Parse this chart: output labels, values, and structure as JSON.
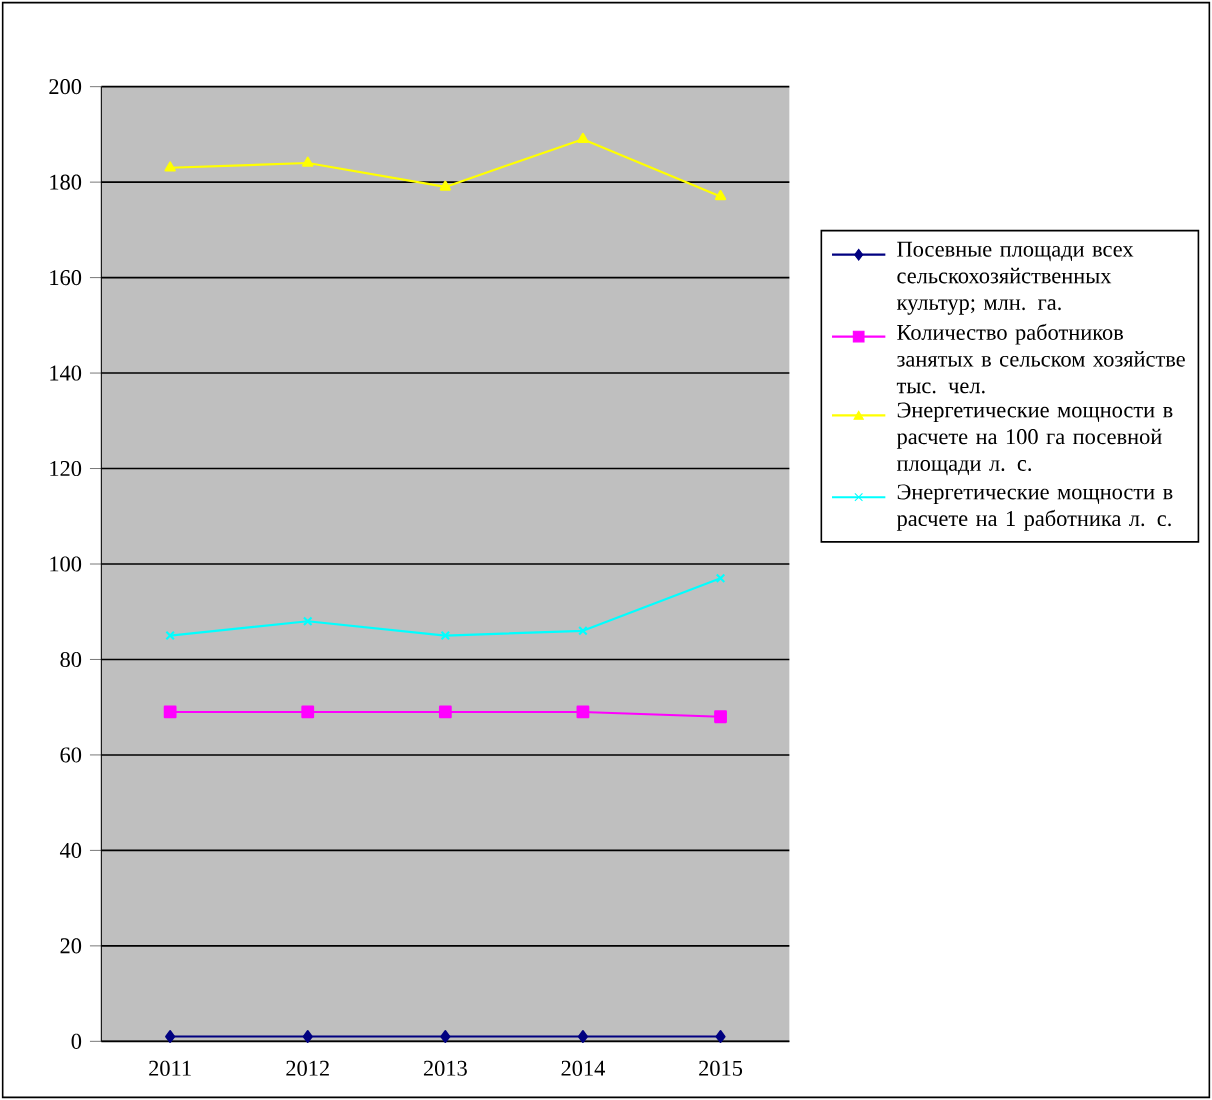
{
  "chart_data": {
    "type": "line",
    "categories": [
      "2011",
      "2012",
      "2013",
      "2014",
      "2015"
    ],
    "series": [
      {
        "name": "Посевные площади всех сельскохозяйственных культур; млн. га.",
        "color": "#000080",
        "marker": "diamond",
        "values": [
          1,
          1,
          1,
          1,
          1
        ]
      },
      {
        "name": "Количество работников занятых в сельском хозяйстве тыс. чел.",
        "color": "#ff00ff",
        "marker": "square",
        "values": [
          69,
          69,
          69,
          69,
          68
        ]
      },
      {
        "name": "Энергетические мощности в расчете на 100 га посевной площади л. с.",
        "color": "#ffff00",
        "marker": "triangle",
        "values": [
          183,
          184,
          179,
          189,
          177
        ]
      },
      {
        "name": "Энергетические мощности в расчете на 1 работника л. с.",
        "color": "#00ffff",
        "marker": "cross",
        "values": [
          85,
          88,
          85,
          86,
          97
        ]
      }
    ],
    "ylim": [
      0,
      200
    ],
    "yticks": [
      0,
      20,
      40,
      60,
      80,
      100,
      120,
      140,
      160,
      180,
      200
    ],
    "grid": "y",
    "legend": "right",
    "line_style": "solid"
  }
}
